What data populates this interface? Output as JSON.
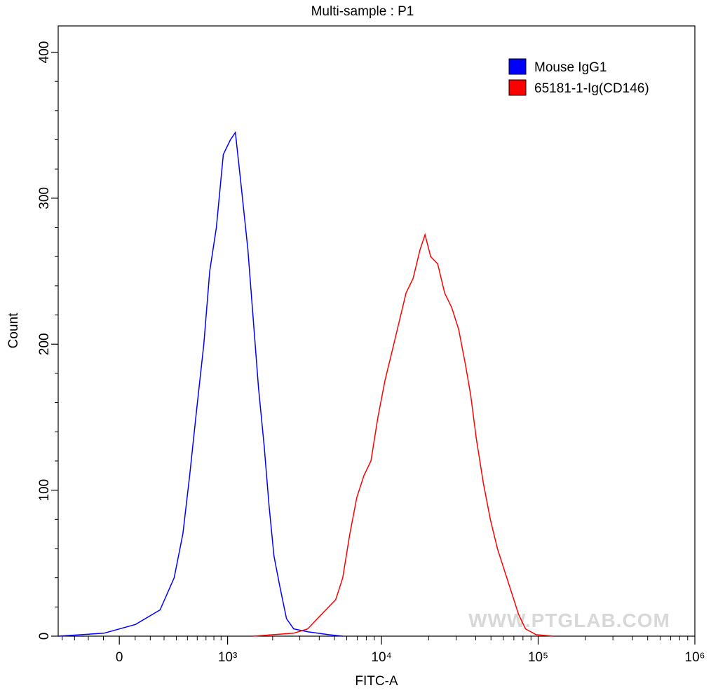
{
  "chart_data": {
    "type": "histogram-line",
    "title": "Multi-sample : P1",
    "x_label": "FITC-A",
    "y_label": "Count",
    "xscale": "biexponential",
    "xlim": [
      -435,
      1000000
    ],
    "ylim": [
      0,
      418
    ],
    "xticks": [
      0,
      {
        "value": 1000,
        "label": "10³"
      },
      {
        "value": 10000,
        "label": "10⁴"
      },
      {
        "value": 100000,
        "label": "10⁵"
      },
      {
        "value": 1000000,
        "label": "10⁶"
      }
    ],
    "xminorticks": [
      -400,
      -300,
      -200,
      -100,
      100,
      200,
      300,
      400,
      500,
      600,
      700,
      800,
      900,
      2000,
      3000,
      4000,
      5000,
      6000,
      7000,
      8000,
      9000,
      20000,
      30000,
      40000,
      50000,
      60000,
      70000,
      80000,
      90000,
      200000,
      300000,
      400000,
      500000,
      600000,
      700000,
      800000,
      900000
    ],
    "yticks": [
      0,
      100,
      200,
      300,
      400
    ],
    "yminorticks": [
      20,
      40,
      60,
      80,
      120,
      140,
      160,
      180,
      220,
      240,
      260,
      280,
      320,
      340,
      360,
      380
    ],
    "legend": "top-right",
    "watermark": "WWW.PTGLAB.COM",
    "series": [
      {
        "name": "Mouse IgG1",
        "color": "#0000ff",
        "x": [
          -435,
          -97,
          102,
          270,
          381,
          457,
          522,
          593,
          674,
          746,
          834,
          934,
          1045,
          1131,
          1233,
          1373,
          1483,
          1615,
          1760,
          1893,
          2040,
          2219,
          2461,
          2737,
          3370,
          4600,
          5657
        ],
        "values": [
          0,
          2,
          8,
          18,
          40,
          70,
          110,
          155,
          200,
          250,
          280,
          330,
          340,
          345,
          310,
          265,
          220,
          170,
          130,
          90,
          55,
          35,
          12,
          5,
          3,
          1,
          0
        ]
      },
      {
        "name": "65181-1-Ig(CD146)",
        "color": "#ff0000",
        "x": [
          1483,
          2737,
          3370,
          4148,
          5100,
          5657,
          6275,
          6960,
          7720,
          8560,
          9494,
          10527,
          11675,
          12950,
          14360,
          15920,
          17650,
          18980,
          20600,
          22840,
          25330,
          28090,
          31110,
          34510,
          37100,
          40330,
          44670,
          49550,
          54950,
          60950,
          67580,
          74930,
          83090,
          97030,
          125600
        ],
        "values": [
          0,
          2,
          5,
          15,
          25,
          40,
          70,
          95,
          110,
          120,
          150,
          175,
          195,
          215,
          235,
          245,
          265,
          275,
          260,
          255,
          235,
          225,
          210,
          185,
          165,
          135,
          105,
          80,
          60,
          45,
          30,
          15,
          5,
          1,
          0
        ]
      }
    ]
  }
}
